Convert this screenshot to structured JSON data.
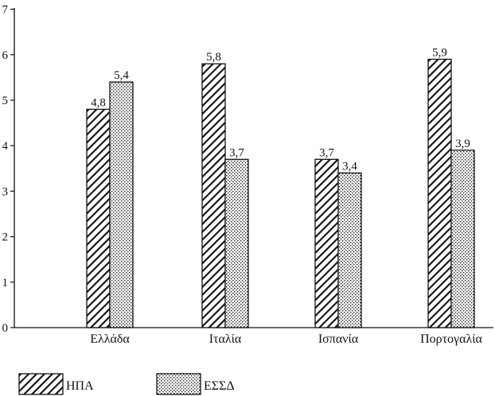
{
  "chart_data": {
    "type": "bar",
    "categories": [
      "Ελλάδα",
      "Ιταλία",
      "Ισπανία",
      "Πορτογαλία"
    ],
    "series": [
      {
        "name": "ΗΠΑ",
        "values": [
          4.8,
          5.8,
          3.7,
          5.9
        ],
        "labels": [
          "4,8",
          "5,8",
          "3,7",
          "5,9"
        ],
        "pattern": "diagonal-hatch"
      },
      {
        "name": "ΕΣΣΔ",
        "values": [
          5.4,
          3.7,
          3.4,
          3.9
        ],
        "labels": [
          "5,4",
          "3,7",
          "3,4",
          "3,9"
        ],
        "pattern": "dotted"
      }
    ],
    "y_ticks": [
      "0",
      "1",
      "2",
      "3",
      "4",
      "5",
      "6",
      "7"
    ],
    "ylim": [
      0,
      7
    ],
    "grid": false,
    "legend_position": "bottom-left",
    "colors": {
      "ink": "#111111",
      "background": "#ffffff"
    }
  }
}
